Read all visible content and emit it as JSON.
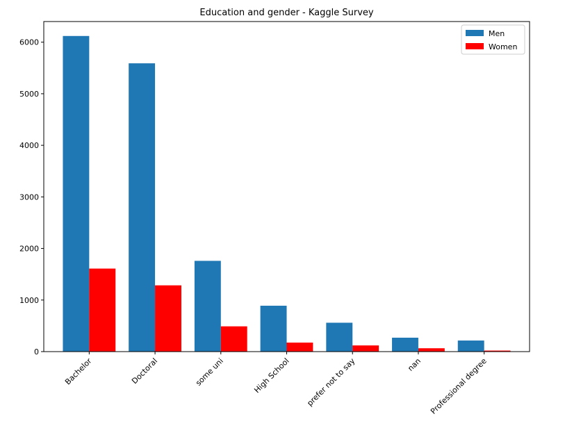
{
  "chart_data": {
    "type": "bar",
    "title": "Education and gender - Kaggle Survey",
    "xlabel": "",
    "ylabel": "",
    "categories": [
      "Bachelor",
      "Doctoral",
      "some uni",
      "High School",
      "prefer not to say",
      "nan",
      "Professional degree"
    ],
    "series": [
      {
        "name": "Men",
        "color": "#1f77b4",
        "values": [
          6120,
          5590,
          1760,
          890,
          560,
          270,
          215
        ]
      },
      {
        "name": "Women",
        "color": "#ff0000",
        "values": [
          1610,
          1285,
          490,
          175,
          120,
          65,
          20
        ]
      }
    ],
    "ylim": [
      0,
      6400
    ],
    "yticks": [
      0,
      1000,
      2000,
      3000,
      4000,
      5000,
      6000
    ],
    "ytick_labels": [
      "0",
      "1000",
      "2000",
      "3000",
      "4000",
      "5000",
      "6000"
    ],
    "legend": {
      "placement": "top-right"
    },
    "grid": false
  }
}
